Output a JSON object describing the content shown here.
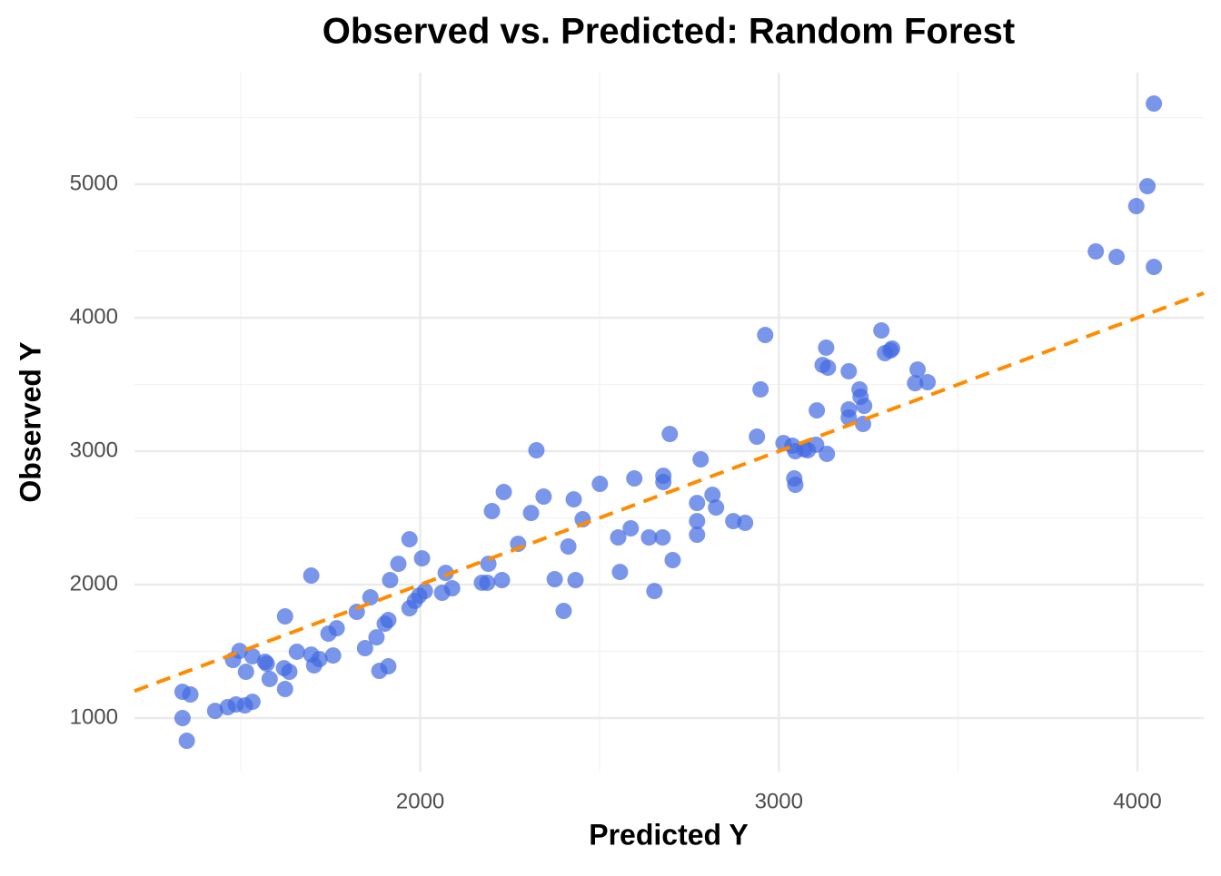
{
  "chart_data": {
    "type": "scatter",
    "title": "Observed vs. Predicted: Random Forest",
    "x_label": "Predicted Y",
    "y_label": "Observed Y",
    "color": "#4169e1",
    "xlim": [
      1203,
      4185
    ],
    "ylim": [
      599,
      5837
    ],
    "xticks": [
      2000,
      3000,
      4000
    ],
    "yticks": [
      1000,
      2000,
      3000,
      4000,
      5000
    ],
    "xminor": [
      1500,
      2500,
      3500
    ],
    "yminor": [
      1500,
      2500,
      3500,
      4500,
      5500
    ],
    "grid": true,
    "reference_line": {
      "slope": 1,
      "intercept": 0,
      "color": "#ff8c00"
    },
    "x": [
      1337,
      1359,
      1337,
      1349,
      1428,
      1463,
      1486,
      1511,
      1532,
      1478,
      1496,
      1514,
      1532,
      1567,
      1572,
      1580,
      1623,
      1620,
      1623,
      1635,
      1656,
      1696,
      1696,
      1704,
      1719,
      1744,
      1757,
      1767,
      1823,
      1846,
      1861,
      1878,
      1886,
      1901,
      1911,
      1911,
      1916,
      1939,
      1970,
      1970,
      1985,
      1997,
      2005,
      2013,
      2061,
      2071,
      2089,
      2172,
      2187,
      2190,
      2200,
      2228,
      2233,
      2273,
      2309,
      2324,
      2344,
      2375,
      2400,
      2413,
      2428,
      2433,
      2453,
      2501,
      2552,
      2557,
      2587,
      2597,
      2638,
      2653,
      2676,
      2678,
      2678,
      2696,
      2704,
      2772,
      2772,
      2772,
      2782,
      2815,
      2825,
      2873,
      2906,
      2939,
      2949,
      2962,
      3013,
      3038,
      3043,
      3046,
      3046,
      3071,
      3081,
      3104,
      3106,
      3122,
      3132,
      3134,
      3137,
      3195,
      3195,
      3195,
      3225,
      3228,
      3238,
      3235,
      3286,
      3296,
      3311,
      3316,
      3387,
      3380,
      3415,
      3884,
      3942,
      3997,
      4028,
      4046,
      4046
    ],
    "values": [
      1197,
      1177,
      1000,
      830,
      1054,
      1082,
      1102,
      1095,
      1122,
      1435,
      1503,
      1347,
      1463,
      1422,
      1408,
      1293,
      1762,
      1374,
      1218,
      1347,
      1497,
      2068,
      1476,
      1395,
      1442,
      1633,
      1469,
      1673,
      1796,
      1524,
      1905,
      1605,
      1354,
      1707,
      1735,
      1388,
      2034,
      2156,
      2340,
      1823,
      1878,
      1918,
      2197,
      1952,
      1939,
      2088,
      1973,
      2014,
      2014,
      2156,
      2551,
      2034,
      2694,
      2306,
      2537,
      3007,
      2660,
      2041,
      1803,
      2286,
      2639,
      2034,
      2490,
      2755,
      2354,
      2095,
      2422,
      2796,
      2354,
      1952,
      2354,
      2816,
      2769,
      3129,
      2184,
      2612,
      2476,
      2374,
      2939,
      2673,
      2578,
      2476,
      2463,
      3109,
      3463,
      3871,
      3061,
      3041,
      2796,
      2748,
      3000,
      3014,
      3007,
      3048,
      3306,
      3646,
      3776,
      2980,
      3626,
      3599,
      3313,
      3252,
      3463,
      3408,
      3340,
      3204,
      3905,
      3735,
      3755,
      3769,
      3612,
      3510,
      3517,
      4497,
      4456,
      4837,
      4986,
      4381,
      5605
    ]
  }
}
